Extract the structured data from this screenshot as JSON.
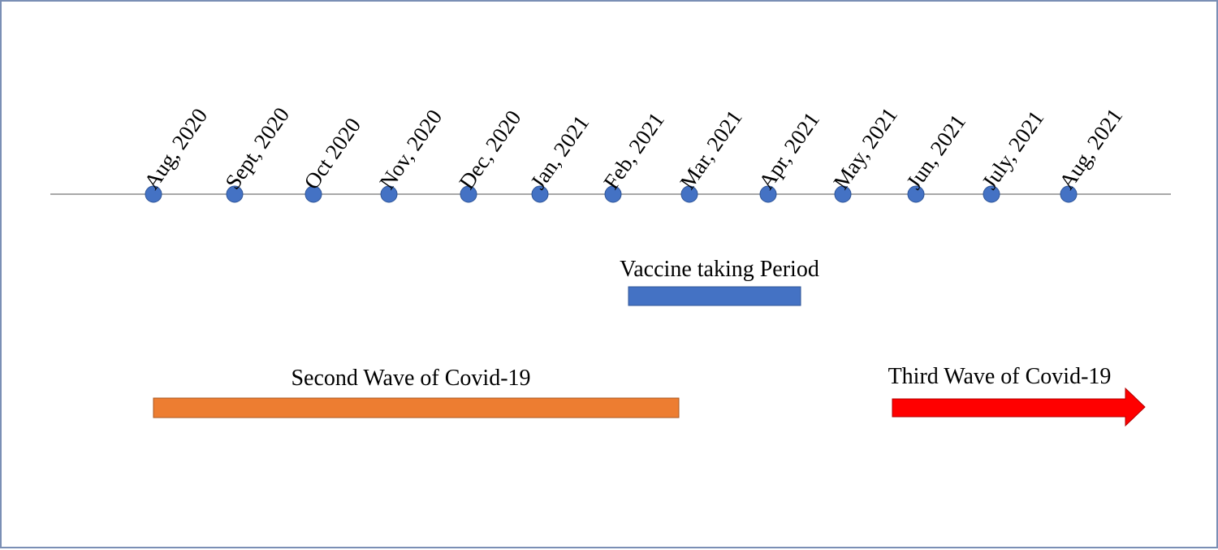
{
  "timeline": {
    "months": [
      "Aug, 2020",
      "Sept, 2020",
      "Oct 2020",
      "Nov, 2020",
      "Dec, 2020",
      "Jan, 2021",
      "Feb, 2021",
      "Mar, 2021",
      "Apr, 2021",
      "May, 2021",
      "Jun, 2021",
      "July, 2021",
      "Aug, 2021"
    ]
  },
  "periods": {
    "vaccine": {
      "label": "Vaccine taking Period",
      "start": "Feb, 2021",
      "end": "Apr, 2021"
    },
    "second_wave": {
      "label": "Second Wave of Covid-19",
      "start": "Aug, 2020",
      "end": "Mar, 2021"
    },
    "third_wave": {
      "label": "Third Wave of Covid-19",
      "start": "Jun, 2021",
      "ongoing": true
    }
  },
  "colors": {
    "frame": "#7a8fb5",
    "axis": "#8c8c8c",
    "marker": "#4472c4",
    "marker_stroke": "#2f5597",
    "vaccine": "#4472c4",
    "second_wave": "#ed7d31",
    "third_wave": "#ff0000"
  }
}
